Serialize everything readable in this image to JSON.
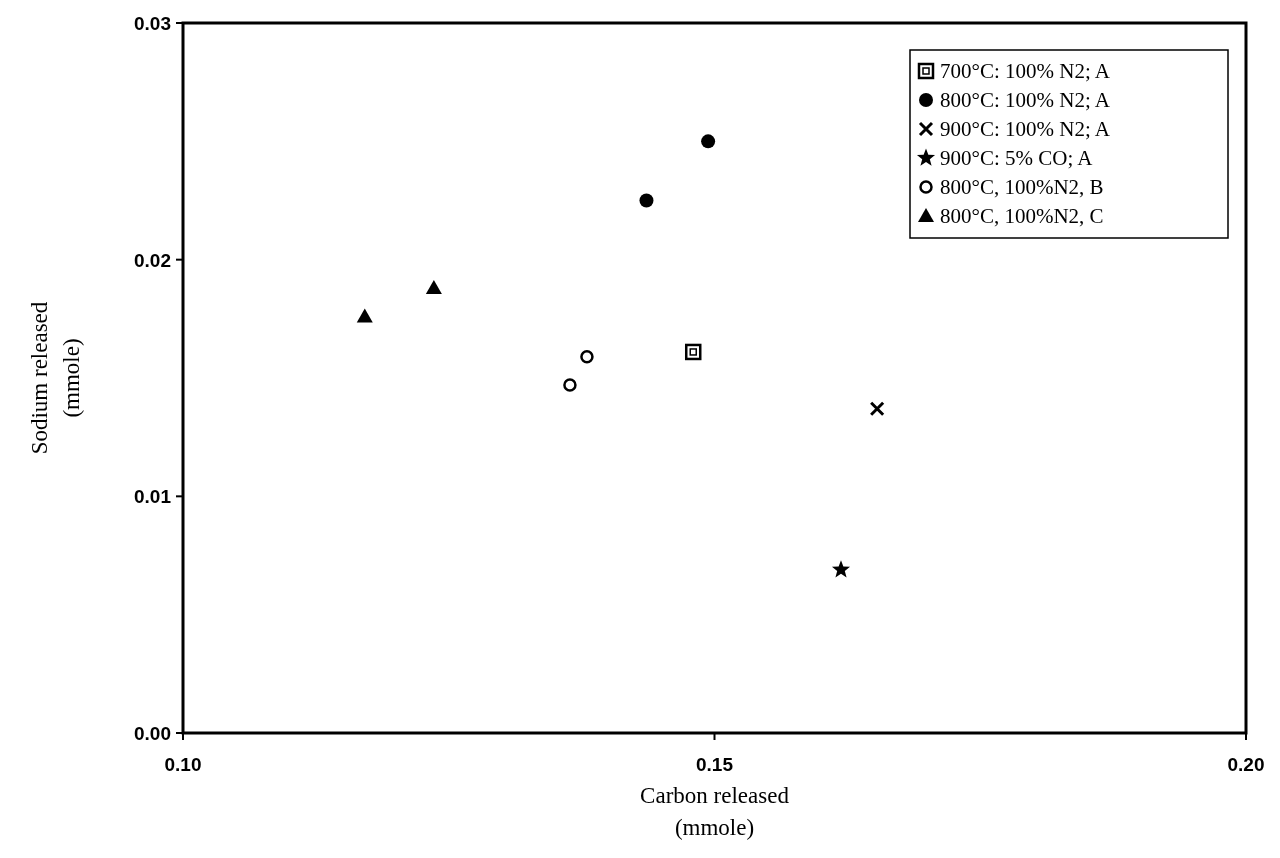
{
  "chart_data": {
    "type": "scatter",
    "xlabel": "Carbon released\n(mmole)",
    "ylabel": "Sodium released\n(mmole)",
    "xlim": [
      0.1,
      0.2
    ],
    "ylim": [
      0,
      0.03
    ],
    "xticks": [
      {
        "value": 0.1,
        "label": "0.10"
      },
      {
        "value": 0.15,
        "label": "0.15"
      },
      {
        "value": 0.2,
        "label": "0.20"
      }
    ],
    "yticks": [
      {
        "value": 0,
        "label": "0.00"
      },
      {
        "value": 0.01,
        "label": "0.01"
      },
      {
        "value": 0.02,
        "label": "0.02"
      },
      {
        "value": 0.03,
        "label": "0.03"
      }
    ],
    "grid": false,
    "legend": "top right",
    "series": [
      {
        "name": "700°C: 100% N2; A",
        "color": "#000000",
        "marker": "square-open",
        "x": [
          0.148
        ],
        "values": [
          0.0161
        ]
      },
      {
        "name": "800°C: 100% N2; A",
        "color": "#000000",
        "marker": "circle",
        "x": [
          0.1436,
          0.1494
        ],
        "values": [
          0.0225,
          0.025
        ]
      },
      {
        "name": "900°C: 100% N2; A",
        "color": "#000000",
        "marker": "cross",
        "x": [
          0.1653
        ],
        "values": [
          0.0137
        ]
      },
      {
        "name": "900°C: 5% CO; A",
        "color": "#000000",
        "marker": "star",
        "x": [
          0.1619
        ],
        "values": [
          0.0069
        ]
      },
      {
        "name": "800°C, 100%N2, B",
        "color": "#000000",
        "marker": "circle-open",
        "x": [
          0.1364,
          0.138
        ],
        "values": [
          0.0147,
          0.0159
        ]
      },
      {
        "name": "800°C, 100%N2, C",
        "color": "#000000",
        "marker": "triangle",
        "x": [
          0.1171,
          0.1236
        ],
        "values": [
          0.0176,
          0.0188
        ]
      }
    ]
  }
}
